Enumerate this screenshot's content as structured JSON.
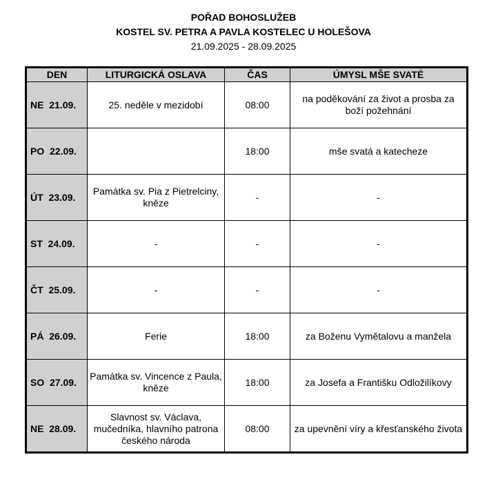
{
  "title": "POŘAD BOHOSLUŽEB",
  "subtitle": "KOSTEL SV. PETRA A PAVLA KOSTELEC U HOLEŠOVA",
  "date_range": "21.09.2025 - 28.09.2025",
  "columns": [
    "DEN",
    "LITURGICKÁ OSLAVA",
    "ČAS",
    "ÚMYSL MŠE SVATÉ"
  ],
  "header_color": "#d0d0d0",
  "rows": [
    {
      "day": "NE  21.09.",
      "celebration": "25. neděle v mezidobí",
      "time": "08:00",
      "intention": "na poděkování za život a prosba za boží požehnání"
    },
    {
      "day": "PO  22.09.",
      "celebration": "",
      "time": "18:00",
      "intention": "mše svatá a katecheze"
    },
    {
      "day": "ÚT  23.09.",
      "celebration": "Památka sv. Pia z Pietrelciny, kněze",
      "time": "-",
      "intention": "-"
    },
    {
      "day": "ST  24.09.",
      "celebration": "-",
      "time": "-",
      "intention": "-"
    },
    {
      "day": "ČT  25.09.",
      "celebration": "-",
      "time": "-",
      "intention": "-"
    },
    {
      "day": "PÁ  26.09.",
      "celebration": "Ferie",
      "time": "18:00",
      "intention": "za Boženu Vymětalovu a manžela"
    },
    {
      "day": "SO  27.09.",
      "celebration": "Památka sv. Vincence z Paula, kněze",
      "time": "18:00",
      "intention": "za Josefa a Františku Odložilíkovy"
    },
    {
      "day": "NE  28.09.",
      "celebration": "Slavnost sv. Václava, mučedníka, hlavního patrona českého národa",
      "time": "08:00",
      "intention": "za upevnění víry a křesťanského života"
    }
  ]
}
